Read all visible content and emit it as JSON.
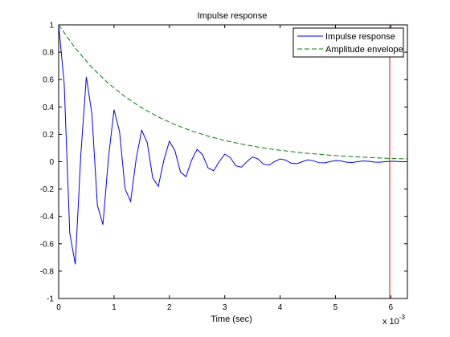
{
  "chart_data": {
    "type": "line",
    "title": "Impulse response",
    "xlabel": "Time (sec)",
    "ylabel": "",
    "x_exponent_label": "x 10",
    "x_exponent_power": "-3",
    "xlim": [
      0,
      0.0063
    ],
    "ylim": [
      -1,
      1
    ],
    "xticks": [
      0,
      0.001,
      0.002,
      0.003,
      0.004,
      0.005,
      0.006
    ],
    "xtick_labels": [
      "0",
      "1",
      "2",
      "3",
      "4",
      "5",
      "6"
    ],
    "yticks": [
      -1,
      -0.8,
      -0.6,
      -0.4,
      -0.2,
      0,
      0.2,
      0.4,
      0.6,
      0.8,
      1
    ],
    "ytick_labels": [
      "-1",
      "-0.8",
      "-0.6",
      "-0.4",
      "-0.2",
      "0",
      "0.2",
      "0.4",
      "0.6",
      "0.8",
      "1"
    ],
    "grid": false,
    "legend_position": "top-right",
    "series": [
      {
        "name": "Impulse response",
        "color": "#0000ff",
        "style": "solid",
        "x": [
          0,
          0.0001,
          0.0002,
          0.0003,
          0.0004,
          0.0005,
          0.0006,
          0.0007,
          0.0008,
          0.0009,
          0.001,
          0.0011,
          0.0012,
          0.0013,
          0.0014,
          0.0015,
          0.0016,
          0.0017,
          0.0018,
          0.0019,
          0.002,
          0.0021,
          0.0022,
          0.0023,
          0.0024,
          0.0025,
          0.0026,
          0.0027,
          0.0028,
          0.0029,
          0.003,
          0.0031,
          0.0032,
          0.0033,
          0.0034,
          0.0035,
          0.0036,
          0.0037,
          0.0038,
          0.0039,
          0.004,
          0.0041,
          0.0042,
          0.0043,
          0.0044,
          0.0045,
          0.0046,
          0.0047,
          0.0048,
          0.0049,
          0.005,
          0.0051,
          0.0052,
          0.0053,
          0.0054,
          0.0055,
          0.0056,
          0.0057,
          0.0058,
          0.0059,
          0.006,
          0.0061,
          0.0062,
          0.0063
        ],
        "y": [
          1.0,
          0.57,
          -0.52,
          -0.75,
          0.05,
          0.62,
          0.35,
          -0.32,
          -0.46,
          0.03,
          0.38,
          0.22,
          -0.2,
          -0.29,
          0.02,
          0.23,
          0.14,
          -0.12,
          -0.18,
          0.01,
          0.15,
          0.08,
          -0.075,
          -0.11,
          0.01,
          0.09,
          0.05,
          -0.046,
          -0.066,
          0.0,
          0.055,
          0.03,
          -0.03,
          -0.04,
          0.0,
          0.035,
          0.02,
          -0.018,
          -0.025,
          0.0,
          0.02,
          0.012,
          -0.011,
          -0.015,
          0.0,
          0.013,
          0.007,
          -0.007,
          -0.009,
          0.0,
          0.008,
          0.005,
          -0.004,
          -0.006,
          0.0,
          0.005,
          0.003,
          -0.003,
          -0.004,
          0.0,
          0.003,
          0.002,
          -0.001,
          0.0
        ]
      },
      {
        "name": "Amplitude envelope",
        "color": "#008000",
        "style": "dashed",
        "decay_tau": 0.00161,
        "x": [
          0,
          0.0003,
          0.0006,
          0.0009,
          0.0012,
          0.0015,
          0.0018,
          0.0021,
          0.0024,
          0.0027,
          0.003,
          0.0033,
          0.0036,
          0.0039,
          0.0042,
          0.0045,
          0.0048,
          0.0051,
          0.0054,
          0.0057,
          0.006,
          0.0063
        ],
        "y": [
          1.0,
          0.83,
          0.689,
          0.572,
          0.475,
          0.394,
          0.327,
          0.271,
          0.225,
          0.187,
          0.155,
          0.129,
          0.107,
          0.089,
          0.074,
          0.061,
          0.051,
          0.042,
          0.035,
          0.029,
          0.024,
          0.02
        ]
      }
    ],
    "annotations": [
      {
        "type": "vertical-line",
        "x": 0.00598,
        "color": "#ff0000"
      }
    ]
  }
}
